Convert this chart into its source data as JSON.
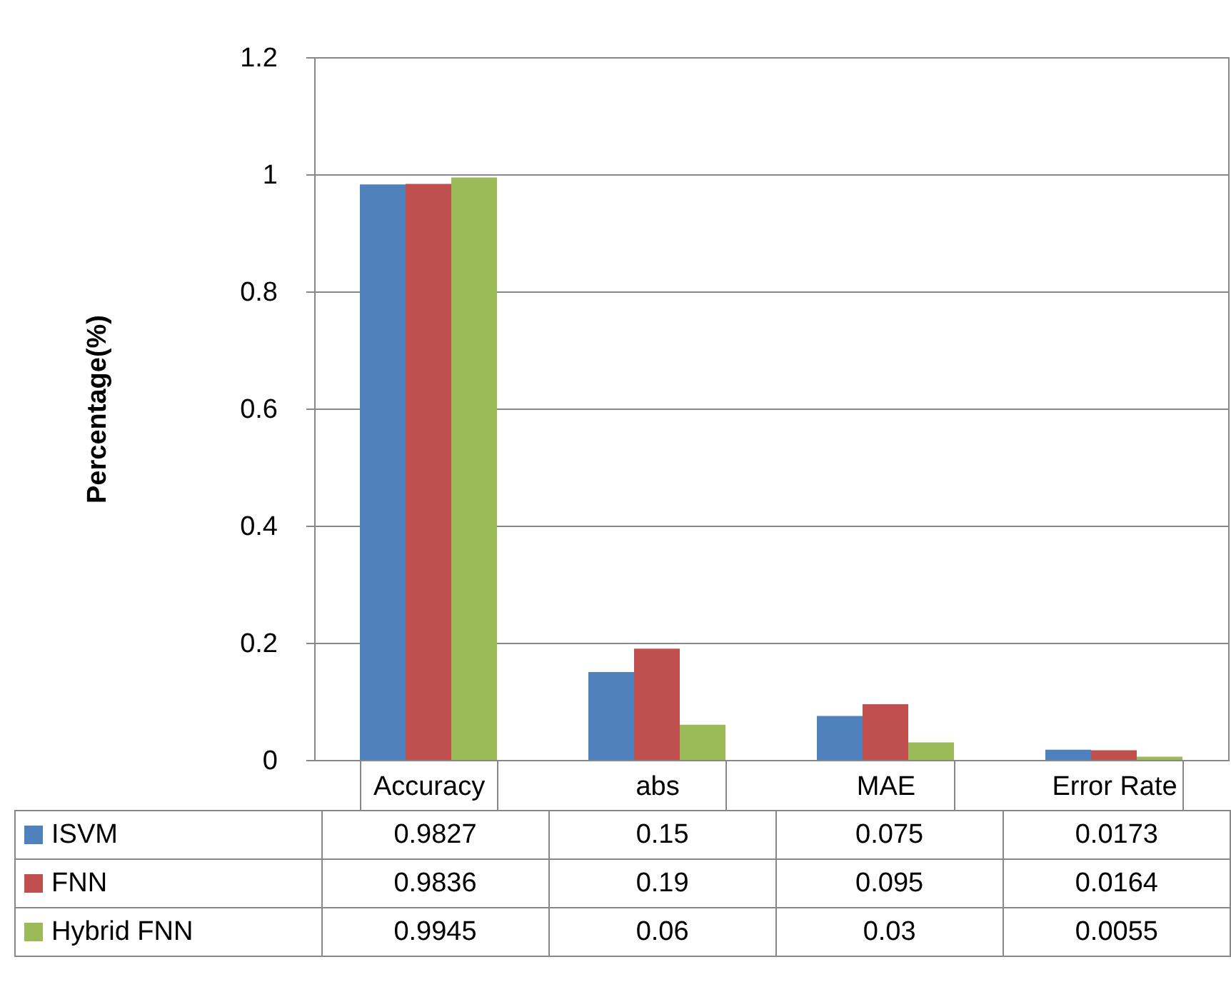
{
  "chart_data": {
    "type": "bar",
    "ylabel": "Percentage(%)",
    "categories": [
      "Accuracy",
      "abs",
      "MAE",
      "Error Rate"
    ],
    "series": [
      {
        "name": "ISVM",
        "color": "#4f81bd",
        "values": [
          0.9827,
          0.15,
          0.075,
          0.0173
        ]
      },
      {
        "name": "FNN",
        "color": "#c0504d",
        "values": [
          0.9836,
          0.19,
          0.095,
          0.0164
        ]
      },
      {
        "name": "Hybrid FNN",
        "color": "#9bbb59",
        "values": [
          0.9945,
          0.06,
          0.03,
          0.0055
        ]
      }
    ],
    "ylim": [
      0,
      1.2
    ],
    "yticks": [
      0,
      0.2,
      0.4,
      0.6,
      0.8,
      1,
      1.2
    ],
    "grid": "y",
    "legend": "bottom",
    "data_labels": true
  }
}
